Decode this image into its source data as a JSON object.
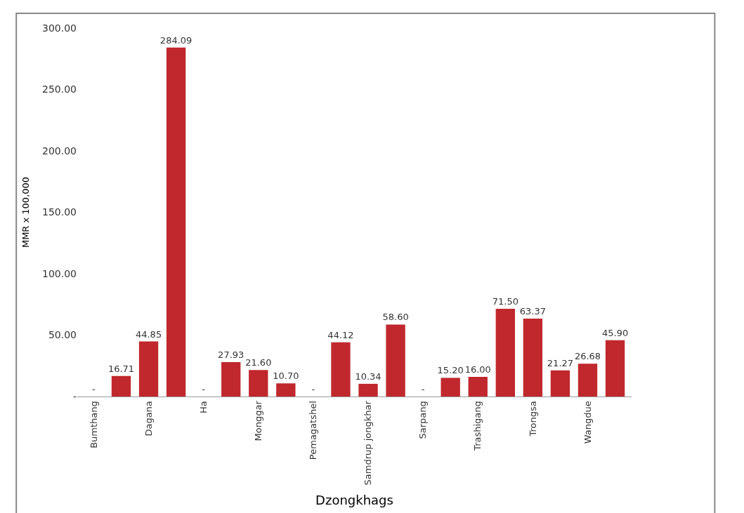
{
  "chart_data": {
    "type": "bar",
    "xlabel": "Dzongkhags",
    "ylabel": "MMR x 100,000",
    "categories": [
      "Bumthang",
      null,
      "Dagana",
      null,
      "Ha",
      null,
      "Monggar",
      null,
      "Pemagatshel",
      null,
      "Samdrup jongkhar",
      null,
      "Sarpang",
      null,
      "Trashigang",
      null,
      "Trongsa",
      null,
      "Wangdue",
      null
    ],
    "values": [
      0,
      16.71,
      44.85,
      284.09,
      0,
      27.93,
      21.6,
      10.7,
      0,
      44.12,
      10.34,
      58.6,
      0,
      15.2,
      16.0,
      71.5,
      63.37,
      21.27,
      26.68,
      45.9
    ],
    "value_labels": [
      "-",
      "16.71",
      "44.85",
      "284.09",
      "-",
      "27.93",
      "21.60",
      "10.70",
      "-",
      "44.12",
      "10.34",
      "58.60",
      "-",
      "15.20",
      "16.00",
      "71.50",
      "63.37",
      "21.27",
      "26.68",
      "45.90"
    ],
    "color": "#c0282d",
    "ylim": [
      0,
      300
    ],
    "yticks": [
      {
        "value": 0,
        "label": "-"
      },
      {
        "value": 50,
        "label": "50.00"
      },
      {
        "value": 100,
        "label": "100.00"
      },
      {
        "value": 150,
        "label": "150.00"
      },
      {
        "value": 200,
        "label": "200.00"
      },
      {
        "value": 250,
        "label": "250.00"
      },
      {
        "value": 300,
        "label": "300.00"
      }
    ],
    "tick_labels": "xy"
  }
}
